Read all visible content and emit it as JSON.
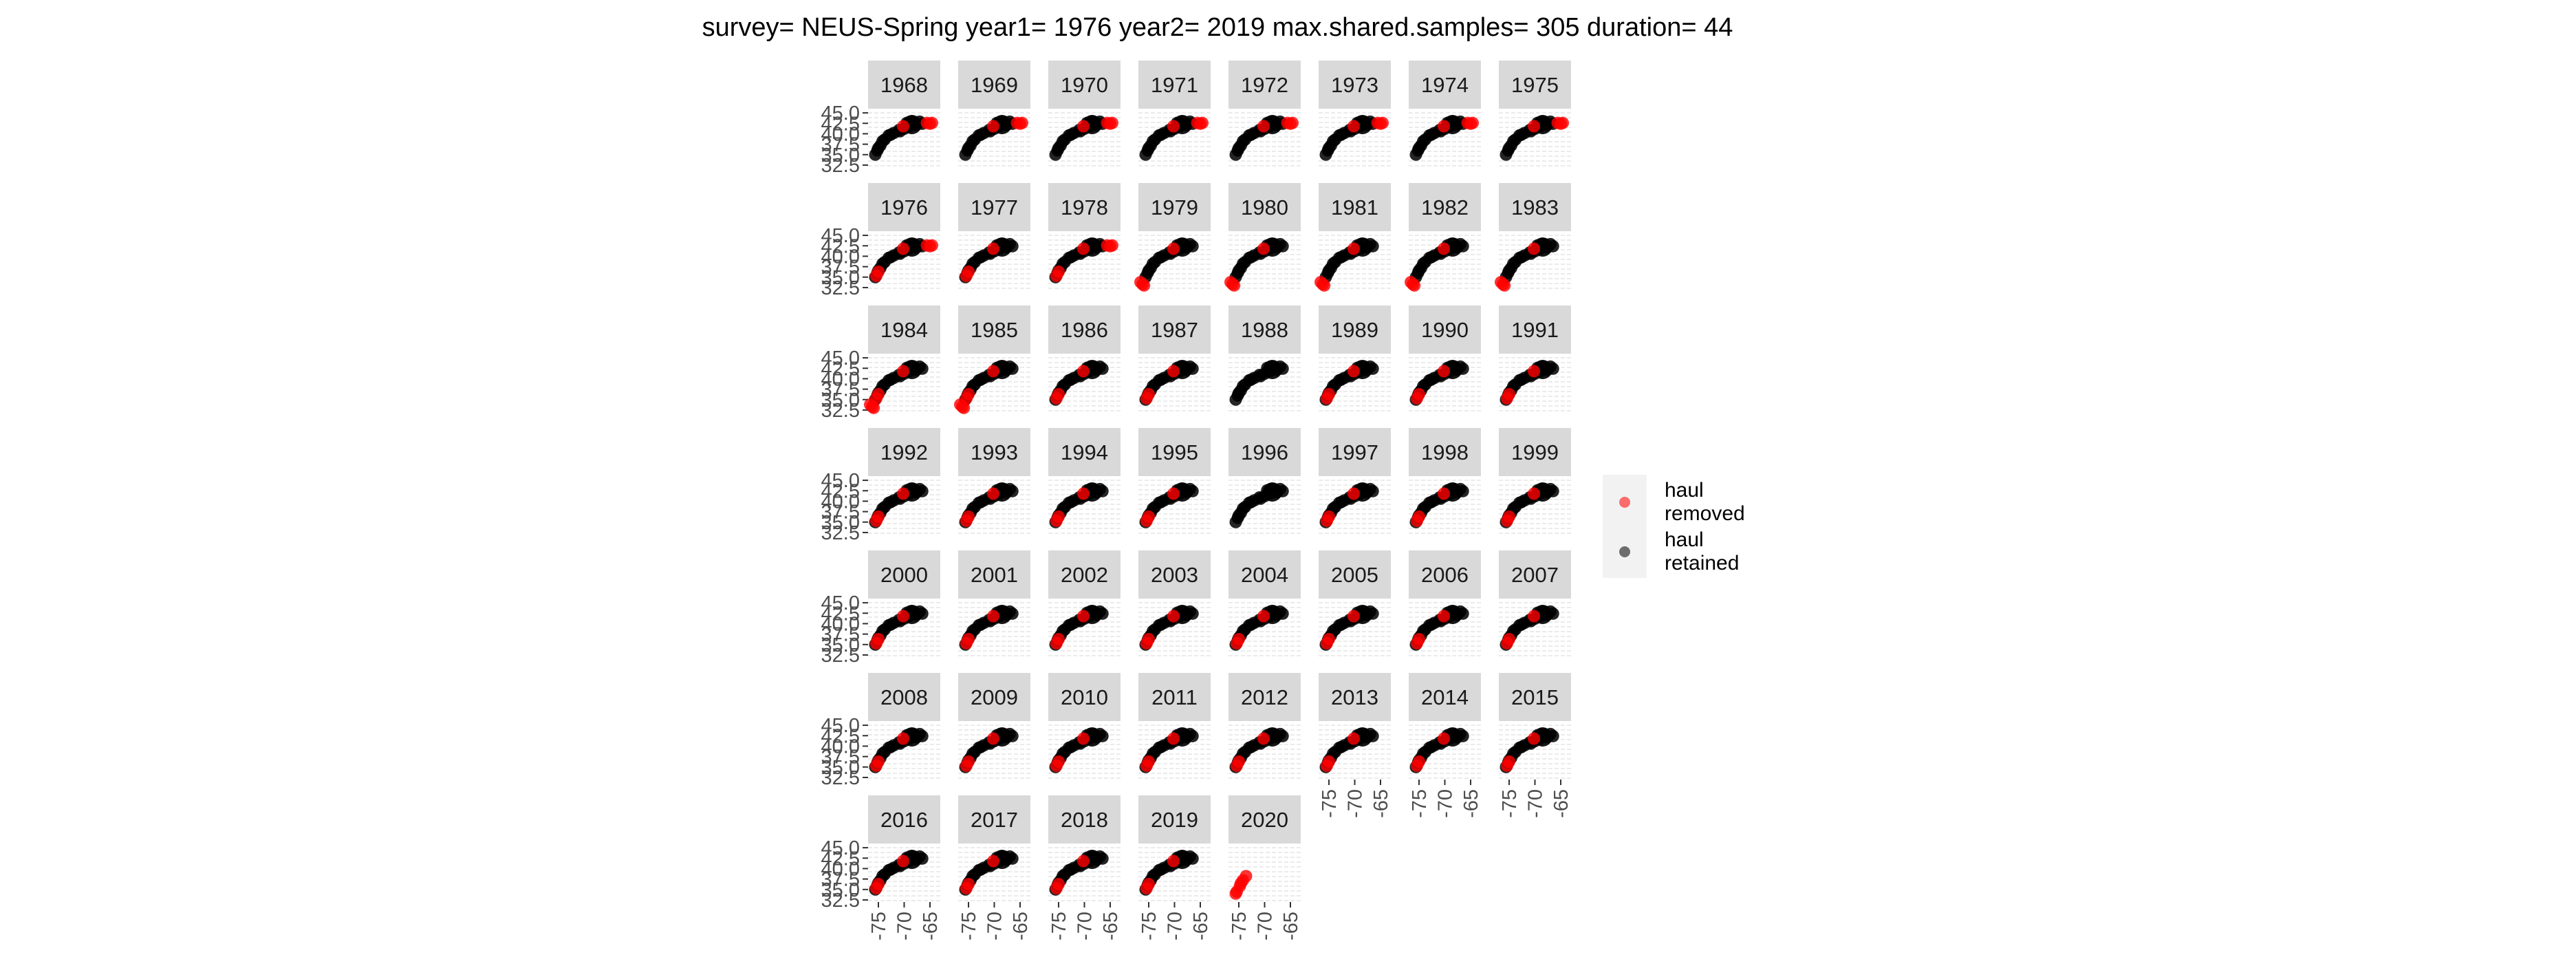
{
  "chart_data": {
    "type": "scatter",
    "title": "survey= NEUS-Spring year1= 1976 year2= 2019 max.shared.samples= 305 duration= 44",
    "xlabel": "",
    "ylabel": "",
    "facet_by": "year",
    "facets": [
      "1968",
      "1969",
      "1970",
      "1971",
      "1972",
      "1973",
      "1974",
      "1975",
      "1976",
      "1977",
      "1978",
      "1979",
      "1980",
      "1981",
      "1982",
      "1983",
      "1984",
      "1985",
      "1986",
      "1987",
      "1988",
      "1989",
      "1990",
      "1991",
      "1992",
      "1993",
      "1994",
      "1995",
      "1996",
      "1997",
      "1998",
      "1999",
      "2000",
      "2001",
      "2002",
      "2003",
      "2004",
      "2005",
      "2006",
      "2007",
      "2008",
      "2009",
      "2010",
      "2011",
      "2012",
      "2013",
      "2014",
      "2015",
      "2016",
      "2017",
      "2018",
      "2019",
      "2020"
    ],
    "ncol": 8,
    "x_ticks": [
      "-75",
      "-70",
      "-65"
    ],
    "y_ticks": [
      "32.5",
      "35.0",
      "37.5",
      "40.0",
      "42.5",
      "45.0"
    ],
    "xlim": [
      -77,
      -63
    ],
    "ylim": [
      32,
      46
    ],
    "legend_position": "right",
    "grid": true,
    "series": [
      {
        "name": "haul\nremoved",
        "color": "#ff0000",
        "alpha": 0.5
      },
      {
        "name": "haul\nretained",
        "color": "#000000",
        "alpha": 0.5
      }
    ],
    "removed_regions": {
      "1968": [
        "ne"
      ],
      "1969": [
        "ne"
      ],
      "1970": [
        "ne"
      ],
      "1971": [
        "ne"
      ],
      "1972": [
        "ne"
      ],
      "1973": [
        "ne"
      ],
      "1974": [
        "ne"
      ],
      "1975": [
        "ne"
      ],
      "1976": [
        "ne",
        "sw"
      ],
      "1977": [
        "sw"
      ],
      "1978": [
        "ne",
        "sw"
      ],
      "1979": [
        "sw_far"
      ],
      "1980": [
        "sw_far"
      ],
      "1981": [
        "sw_far"
      ],
      "1982": [
        "sw_far"
      ],
      "1983": [
        "sw_far"
      ],
      "1984": [
        "sw_far",
        "sw"
      ],
      "1985": [
        "sw_far",
        "sw"
      ],
      "1986": [
        "sw"
      ],
      "1987": [
        "sw"
      ],
      "1988": [],
      "1989": [
        "sw"
      ],
      "1990": [
        "sw"
      ],
      "1991": [
        "sw"
      ],
      "1992": [
        "sw"
      ],
      "1993": [
        "sw"
      ],
      "1994": [
        "sw"
      ],
      "1995": [
        "sw"
      ],
      "1996": [],
      "1997": [
        "sw"
      ],
      "1998": [
        "sw"
      ],
      "1999": [
        "sw"
      ],
      "2000": [
        "sw"
      ],
      "2001": [
        "sw"
      ],
      "2002": [
        "sw"
      ],
      "2003": [
        "sw"
      ],
      "2004": [
        "sw"
      ],
      "2005": [
        "sw"
      ],
      "2006": [
        "sw"
      ],
      "2007": [
        "sw"
      ],
      "2008": [
        "sw"
      ],
      "2009": [
        "sw"
      ],
      "2010": [
        "sw"
      ],
      "2011": [
        "sw"
      ],
      "2012": [
        "sw"
      ],
      "2013": [
        "sw"
      ],
      "2014": [
        "sw"
      ],
      "2015": [
        "sw"
      ],
      "2016": [
        "sw"
      ],
      "2017": [
        "sw"
      ],
      "2018": [
        "sw"
      ],
      "2019": [
        "sw"
      ],
      "2020": [
        "all"
      ]
    }
  }
}
